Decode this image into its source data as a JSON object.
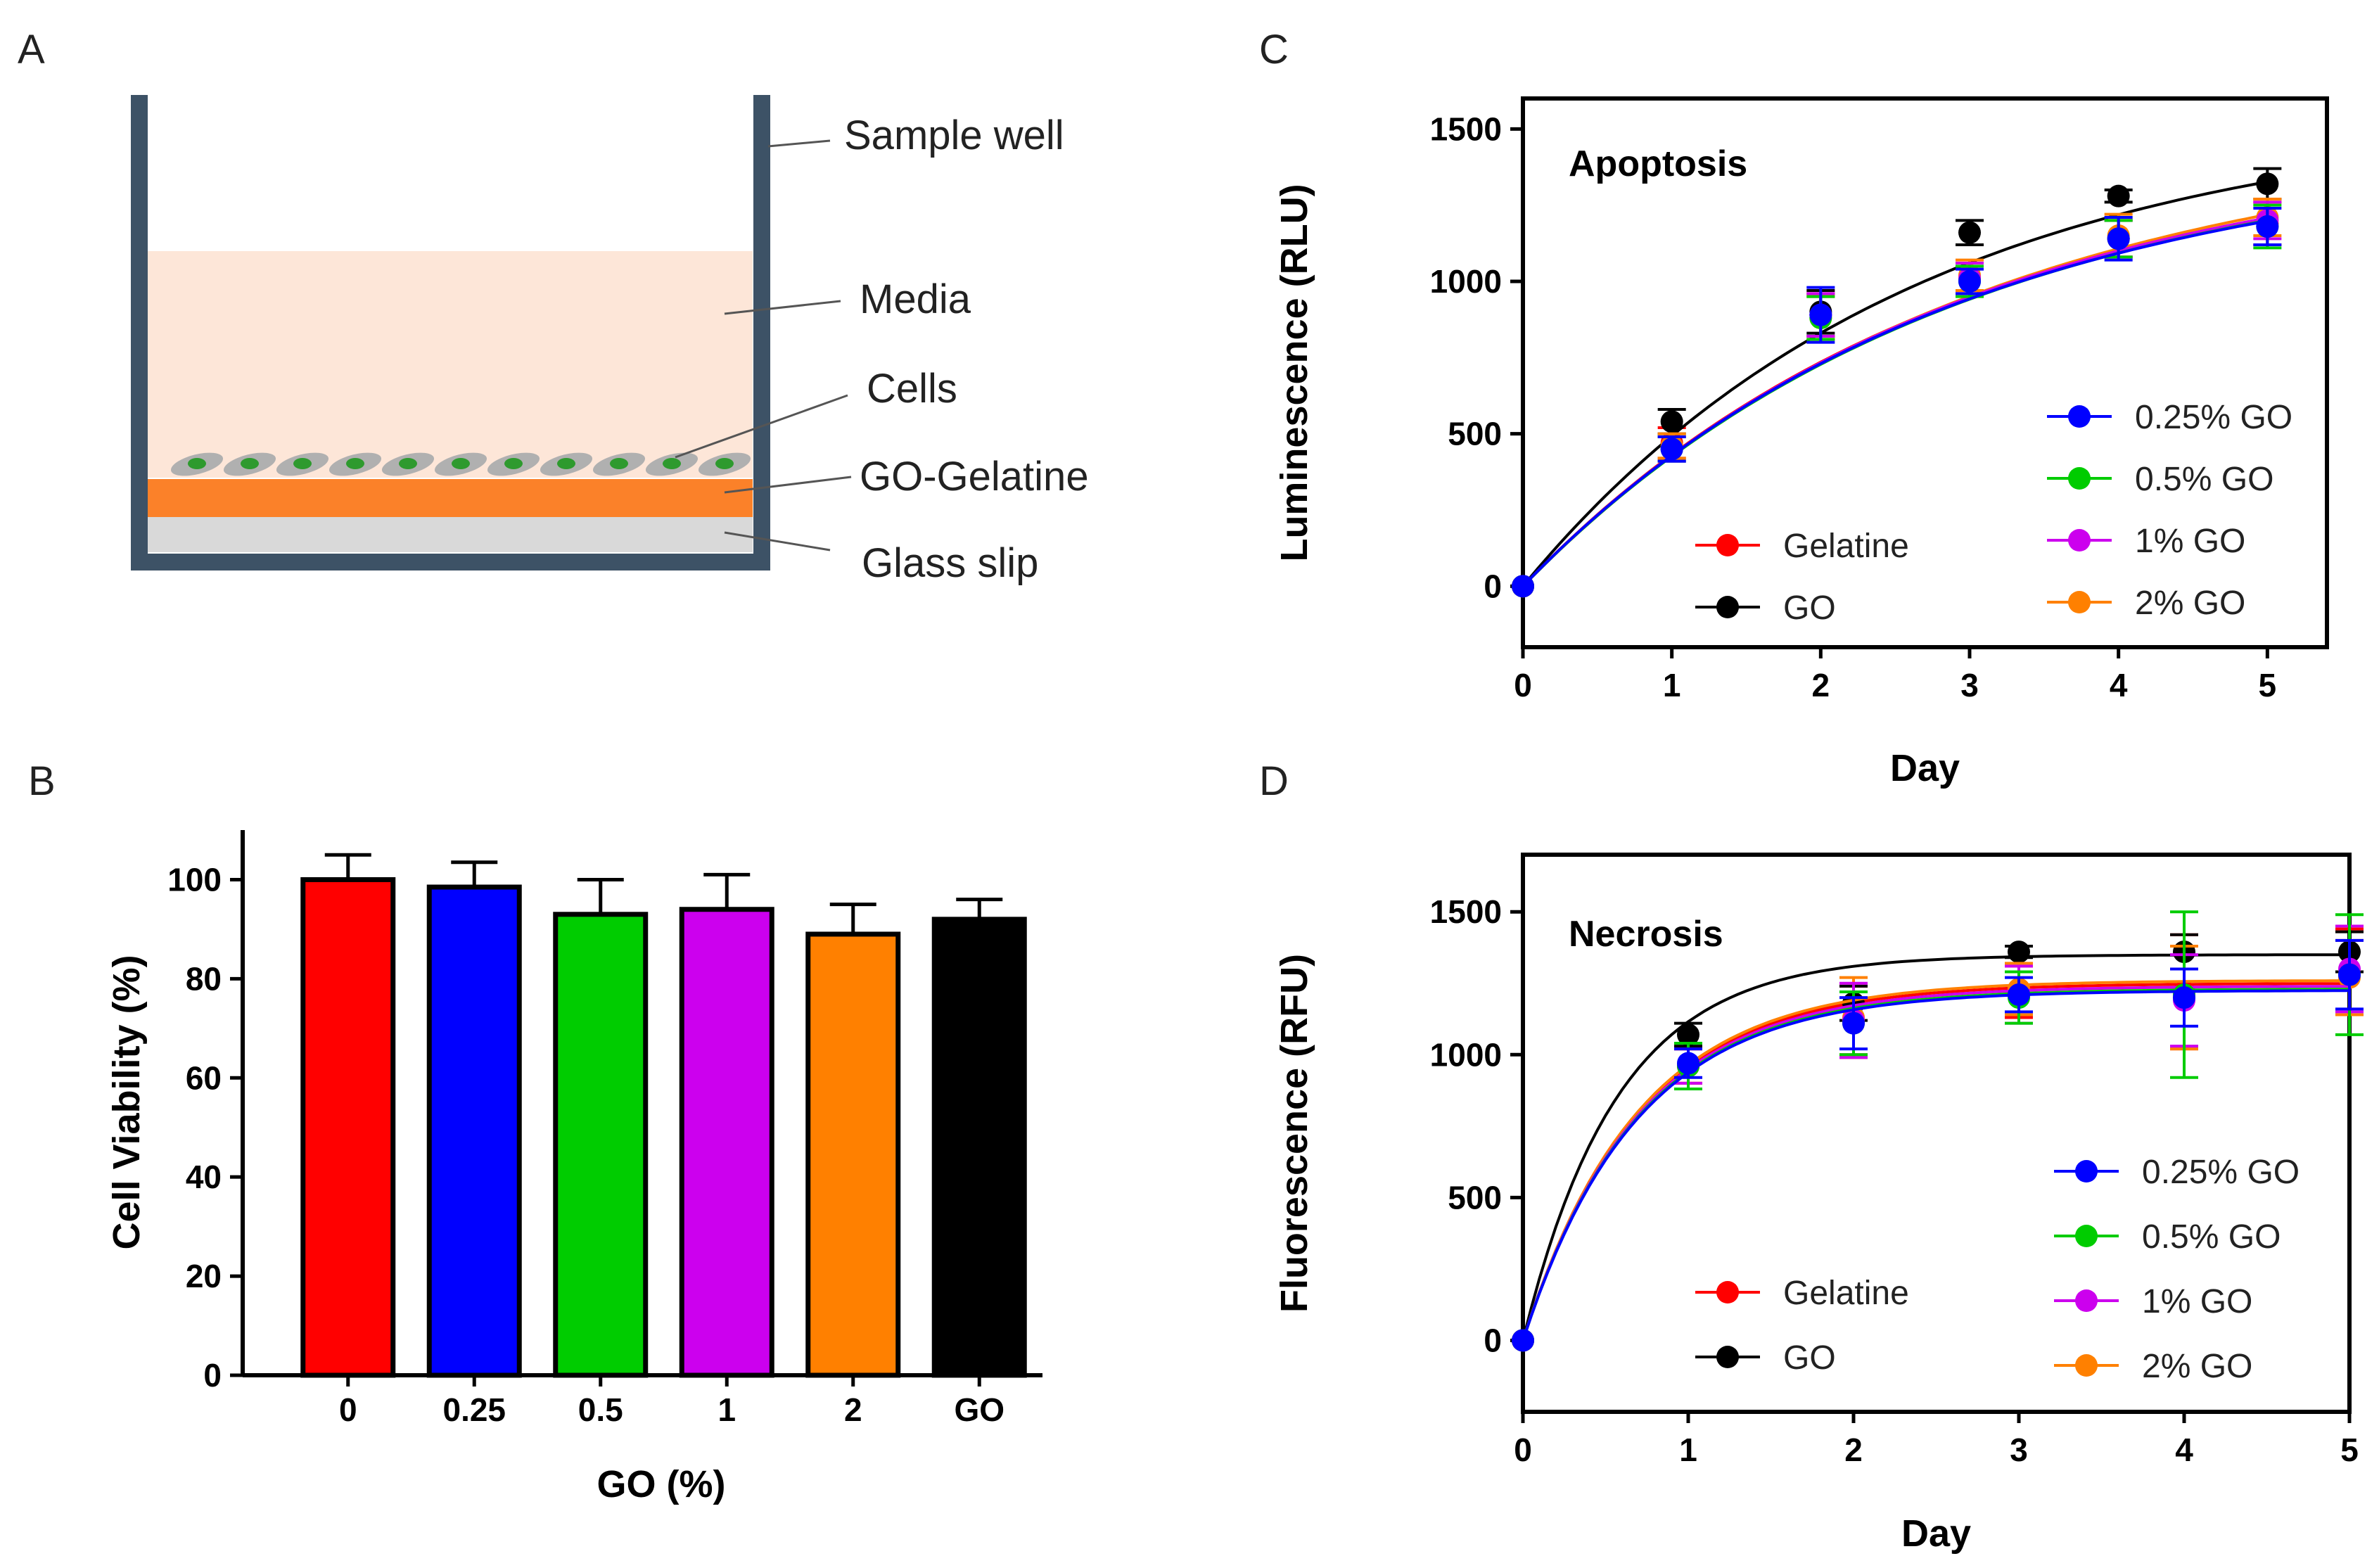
{
  "panels": {
    "a": "A",
    "b": "B",
    "c": "C",
    "d": "D"
  },
  "diagram": {
    "labels": {
      "sample_well": "Sample well",
      "media": "Media",
      "cells": "Cells",
      "go_gelatine": "GO-Gelatine",
      "glass_slip": "Glass slip"
    },
    "colors": {
      "well": "#3d5266",
      "media": "#fde6d8",
      "go_gelatine_layer": "#fb8129",
      "go_gelatine_text": "#ff0000",
      "glass": "#d9d9d9",
      "cell_body": "#b0b0b0",
      "nucleus": "#2e9a2e"
    }
  },
  "chart_data": [
    {
      "id": "B",
      "type": "bar",
      "xlabel": "GO (%)",
      "ylabel": "Cell Viability (%)",
      "ylim": [
        0,
        110
      ],
      "yticks": [
        "0",
        "20",
        "40",
        "60",
        "80",
        "100"
      ],
      "categories": [
        "0",
        "0.25",
        "0.5",
        "1",
        "2",
        "GO"
      ],
      "values": [
        100,
        98.5,
        93,
        94,
        89,
        92
      ],
      "errors": [
        5,
        5,
        7,
        7,
        6,
        4
      ],
      "colors": [
        "#ff0000",
        "#0000ff",
        "#00cc00",
        "#cc00ee",
        "#ff8000",
        "#000000"
      ]
    },
    {
      "id": "C",
      "type": "line",
      "title": "Apoptosis",
      "xlabel": "Day",
      "ylabel": "Luminescence (RLU)",
      "xlim": [
        0,
        5.4
      ],
      "ylim": [
        -200,
        1600
      ],
      "xticks": [
        "0",
        "1",
        "2",
        "3",
        "4",
        "5"
      ],
      "yticks": [
        "0",
        "500",
        "1000",
        "1500"
      ],
      "x": [
        0,
        1,
        2,
        3,
        4,
        5
      ],
      "series": [
        {
          "name": "Gelatine",
          "color": "#ff0000",
          "values": [
            0,
            470,
            890,
            1010,
            1140,
            1190
          ],
          "errors": [
            0,
            50,
            70,
            50,
            60,
            70
          ],
          "fit": {
            "ymax": 1460,
            "k": 0.35
          }
        },
        {
          "name": "GO",
          "color": "#000000",
          "values": [
            0,
            540,
            900,
            1160,
            1280,
            1320
          ],
          "errors": [
            0,
            40,
            70,
            40,
            20,
            50
          ],
          "fit": {
            "ymax": 1560,
            "k": 0.38
          }
        },
        {
          "name": "2% GO",
          "color": "#ff8000",
          "values": [
            0,
            460,
            880,
            1020,
            1150,
            1210
          ],
          "errors": [
            0,
            40,
            70,
            50,
            70,
            60
          ],
          "fit": {
            "ymax": 1500,
            "k": 0.335
          }
        },
        {
          "name": "1% GO",
          "color": "#cc00ee",
          "values": [
            0,
            450,
            890,
            1010,
            1140,
            1200
          ],
          "errors": [
            0,
            40,
            70,
            50,
            60,
            60
          ],
          "fit": {
            "ymax": 1470,
            "k": 0.345
          }
        },
        {
          "name": "0.5% GO",
          "color": "#00cc00",
          "values": [
            0,
            450,
            880,
            1000,
            1140,
            1180
          ],
          "errors": [
            0,
            40,
            70,
            50,
            60,
            70
          ],
          "fit": {
            "ymax": 1460,
            "k": 0.345
          }
        },
        {
          "name": "0.25% GO",
          "color": "#0000ff",
          "values": [
            0,
            450,
            890,
            1000,
            1140,
            1180
          ],
          "errors": [
            0,
            40,
            90,
            40,
            70,
            60
          ],
          "fit": {
            "ymax": 1450,
            "k": 0.35
          }
        }
      ],
      "legend_left": [
        "Gelatine",
        "GO"
      ],
      "legend_right": [
        "0.25% GO",
        "0.5% GO",
        "1% GO",
        "2% GO"
      ]
    },
    {
      "id": "D",
      "type": "line",
      "title": "Necrosis",
      "xlabel": "Day",
      "ylabel": "Fluorescence (RFU)",
      "xlim": [
        0,
        5
      ],
      "ylim": [
        -250,
        1700
      ],
      "xticks": [
        "0",
        "1",
        "2",
        "3",
        "4",
        "5"
      ],
      "yticks": [
        "0",
        "500",
        "1000",
        "1500"
      ],
      "x": [
        0,
        1,
        2,
        3,
        4,
        5
      ],
      "series": [
        {
          "name": "Gelatine",
          "color": "#ff0000",
          "values": [
            0,
            960,
            1120,
            1220,
            1220,
            1290
          ],
          "errors": [
            0,
            60,
            120,
            90,
            200,
            150
          ],
          "fit": {
            "ymax": 1250,
            "k": 1.45
          }
        },
        {
          "name": "GO",
          "color": "#000000",
          "values": [
            0,
            1070,
            1180,
            1360,
            1360,
            1360
          ],
          "errors": [
            0,
            40,
            60,
            20,
            60,
            70
          ],
          "fit": {
            "ymax": 1350,
            "k": 1.75
          }
        },
        {
          "name": "2% GO",
          "color": "#ff8000",
          "values": [
            0,
            960,
            1130,
            1230,
            1200,
            1270
          ],
          "errors": [
            0,
            60,
            140,
            90,
            180,
            130
          ],
          "fit": {
            "ymax": 1260,
            "k": 1.45
          }
        },
        {
          "name": "1% GO",
          "color": "#cc00ee",
          "values": [
            0,
            960,
            1120,
            1210,
            1190,
            1300
          ],
          "errors": [
            0,
            60,
            130,
            100,
            160,
            150
          ],
          "fit": {
            "ymax": 1240,
            "k": 1.45
          }
        },
        {
          "name": "0.5% GO",
          "color": "#00cc00",
          "values": [
            0,
            960,
            1110,
            1200,
            1210,
            1280
          ],
          "errors": [
            0,
            80,
            110,
            90,
            290,
            210
          ],
          "fit": {
            "ymax": 1230,
            "k": 1.45
          }
        },
        {
          "name": "0.25% GO",
          "color": "#0000ff",
          "values": [
            0,
            970,
            1110,
            1210,
            1200,
            1280
          ],
          "errors": [
            0,
            50,
            90,
            60,
            100,
            120
          ],
          "fit": {
            "ymax": 1225,
            "k": 1.45
          }
        }
      ],
      "legend_left": [
        "Gelatine",
        "GO"
      ],
      "legend_right": [
        "0.25% GO",
        "0.5% GO",
        "1% GO",
        "2% GO"
      ]
    }
  ]
}
